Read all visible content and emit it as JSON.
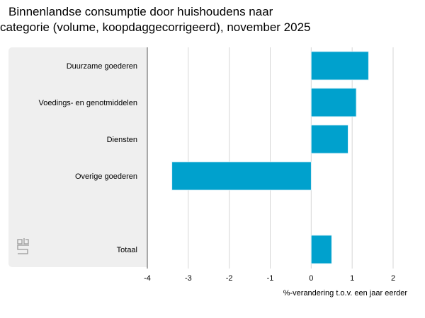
{
  "chart_data": {
    "type": "bar",
    "orientation": "horizontal",
    "title": "Binnenlandse consumptie door huishoudens naar categorie (volume, koopdaggecorrigeerd), november 2025",
    "title_lines": [
      "Binnenlandse consumptie door huishoudens naar",
      "categorie (volume, koopdaggecorrigeerd), november 2025"
    ],
    "categories": [
      "Duurzame goederen",
      "Voedings- en genotmiddelen",
      "Diensten",
      "Overige goederen",
      "",
      "Totaal"
    ],
    "values": [
      1.4,
      1.1,
      0.9,
      -3.4,
      null,
      0.5
    ],
    "xlabel": "%-verandering t.o.v. een jaar eerder",
    "ylabel": "",
    "xlim": [
      -4,
      2
    ],
    "xticks": [
      -4,
      -3,
      -2,
      -1,
      0,
      1,
      2
    ],
    "xtick_labels": [
      "-4",
      "-3",
      "-2",
      "-1",
      "0",
      "1",
      "2"
    ],
    "grid": true,
    "bar_color": "#00a1cd",
    "legend": "none"
  },
  "logo": {
    "name": "cbs-logo",
    "color": "#999999"
  }
}
